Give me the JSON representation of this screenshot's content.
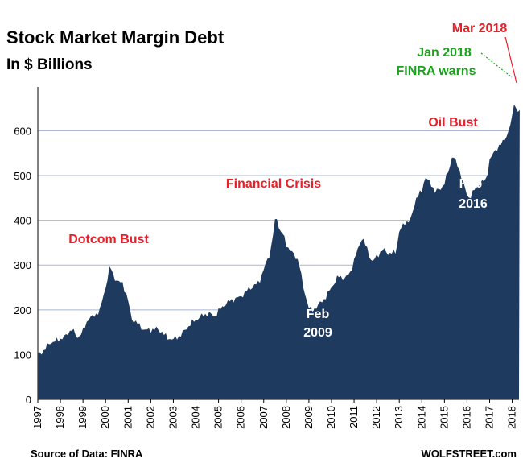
{
  "title": "Stock Market Margin Debt",
  "subtitle": "In $ Billions",
  "source": "Source of Data: FINRA",
  "credit": "WOLFSTREET.com",
  "colors": {
    "area": "#1e3a5f",
    "grid": "#a9b7d0",
    "red": "#e8202a",
    "green": "#1aa31a",
    "white": "#ffffff"
  },
  "chart_data": {
    "type": "area",
    "title": "Stock Market Margin Debt",
    "subtitle": "In $ Billions",
    "xlabel": "",
    "ylabel": "",
    "ylim": [
      0,
      680
    ],
    "xlim": [
      1997.0,
      2018.3
    ],
    "yticks": [
      0,
      100,
      200,
      300,
      400,
      500,
      600
    ],
    "xticks": [
      "1997",
      "1998",
      "1999",
      "2000",
      "2001",
      "2002",
      "2003",
      "2004",
      "2005",
      "2006",
      "2007",
      "2008",
      "2009",
      "2010",
      "2011",
      "2012",
      "2013",
      "2014",
      "2015",
      "2016",
      "2017",
      "2018"
    ],
    "grid": "horizontal",
    "series": [
      {
        "values": [
          [
            1997.0,
            100
          ],
          [
            1997.25,
            108
          ],
          [
            1997.5,
            125
          ],
          [
            1997.75,
            130
          ],
          [
            1998.0,
            135
          ],
          [
            1998.25,
            142
          ],
          [
            1998.5,
            158
          ],
          [
            1998.75,
            138
          ],
          [
            1999.0,
            152
          ],
          [
            1999.25,
            182
          ],
          [
            1999.5,
            186
          ],
          [
            1999.75,
            200
          ],
          [
            2000.0,
            250
          ],
          [
            2000.2,
            300
          ],
          [
            2000.35,
            275
          ],
          [
            2000.55,
            262
          ],
          [
            2000.75,
            260
          ],
          [
            2001.0,
            220
          ],
          [
            2001.15,
            180
          ],
          [
            2001.4,
            170
          ],
          [
            2001.7,
            155
          ],
          [
            2002.0,
            155
          ],
          [
            2002.25,
            158
          ],
          [
            2002.5,
            150
          ],
          [
            2002.75,
            137
          ],
          [
            2003.0,
            134
          ],
          [
            2003.3,
            142
          ],
          [
            2003.6,
            160
          ],
          [
            2003.85,
            173
          ],
          [
            2004.0,
            178
          ],
          [
            2004.3,
            188
          ],
          [
            2004.6,
            192
          ],
          [
            2004.85,
            185
          ],
          [
            2005.0,
            198
          ],
          [
            2005.25,
            210
          ],
          [
            2005.5,
            220
          ],
          [
            2005.75,
            225
          ],
          [
            2006.0,
            230
          ],
          [
            2006.3,
            245
          ],
          [
            2006.6,
            255
          ],
          [
            2006.8,
            262
          ],
          [
            2007.0,
            290
          ],
          [
            2007.3,
            330
          ],
          [
            2007.45,
            381
          ],
          [
            2007.55,
            413
          ],
          [
            2007.7,
            378
          ],
          [
            2007.85,
            370
          ],
          [
            2008.0,
            345
          ],
          [
            2008.3,
            325
          ],
          [
            2008.55,
            310
          ],
          [
            2008.75,
            250
          ],
          [
            2009.0,
            205
          ],
          [
            2009.15,
            198
          ],
          [
            2009.4,
            210
          ],
          [
            2009.7,
            225
          ],
          [
            2010.0,
            250
          ],
          [
            2010.3,
            275
          ],
          [
            2010.6,
            270
          ],
          [
            2010.85,
            285
          ],
          [
            2011.0,
            310
          ],
          [
            2011.2,
            340
          ],
          [
            2011.35,
            362
          ],
          [
            2011.55,
            340
          ],
          [
            2011.8,
            305
          ],
          [
            2012.0,
            320
          ],
          [
            2012.3,
            335
          ],
          [
            2012.55,
            325
          ],
          [
            2012.85,
            330
          ],
          [
            2013.0,
            375
          ],
          [
            2013.25,
            395
          ],
          [
            2013.5,
            400
          ],
          [
            2013.75,
            450
          ],
          [
            2014.0,
            465
          ],
          [
            2014.15,
            499
          ],
          [
            2014.4,
            480
          ],
          [
            2014.6,
            465
          ],
          [
            2014.85,
            470
          ],
          [
            2015.0,
            485
          ],
          [
            2015.25,
            520
          ],
          [
            2015.35,
            549
          ],
          [
            2015.55,
            525
          ],
          [
            2015.75,
            500
          ],
          [
            2016.0,
            455
          ],
          [
            2016.1,
            450
          ],
          [
            2016.35,
            470
          ],
          [
            2016.6,
            485
          ],
          [
            2016.85,
            490
          ],
          [
            2017.0,
            535
          ],
          [
            2017.3,
            560
          ],
          [
            2017.6,
            575
          ],
          [
            2017.85,
            600
          ],
          [
            2018.0,
            630
          ],
          [
            2018.08,
            665
          ],
          [
            2018.2,
            645
          ],
          [
            2018.3,
            643
          ]
        ]
      }
    ],
    "annotations": [
      {
        "text": "Dotcom Bust",
        "color": "red"
      },
      {
        "text": "Financial Crisis",
        "color": "red"
      },
      {
        "text": "Feb",
        "color": "white"
      },
      {
        "text": "2009",
        "color": "white"
      },
      {
        "text": "Oil Bust",
        "color": "red"
      },
      {
        "text": "Feb",
        "color": "white"
      },
      {
        "text": "2016",
        "color": "white"
      },
      {
        "text": "Mar 2018",
        "color": "red"
      },
      {
        "text": "Jan 2018",
        "color": "green"
      },
      {
        "text": "FINRA warns",
        "color": "green"
      }
    ]
  }
}
